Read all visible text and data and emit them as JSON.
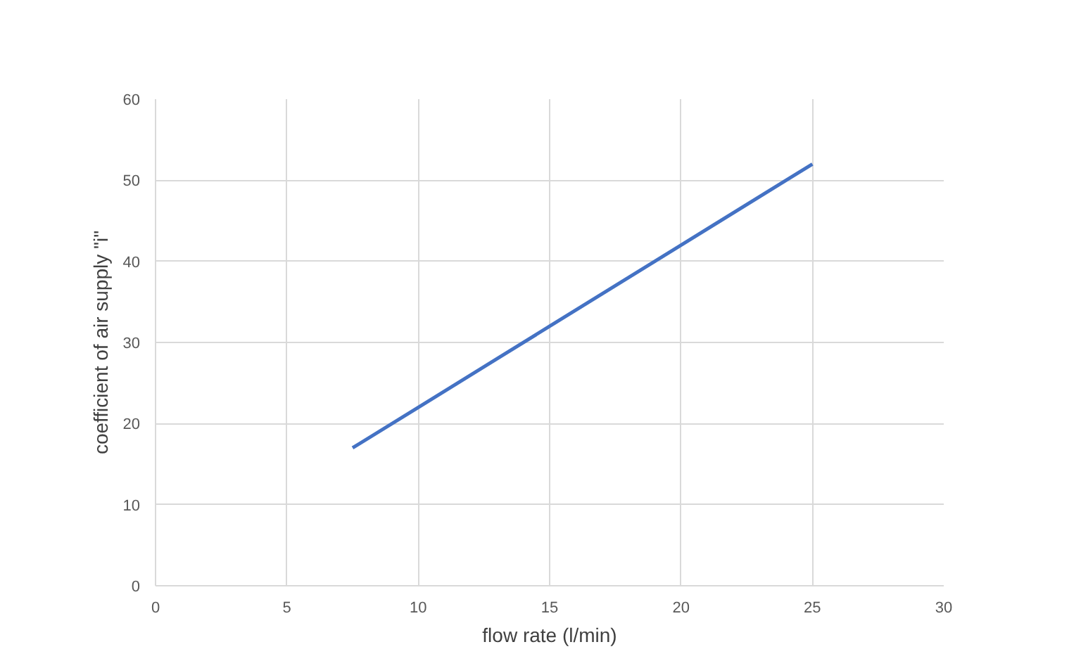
{
  "chart_data": {
    "type": "line",
    "xlabel": "flow rate (l/min)",
    "ylabel": "coefficient of air supply \"i\"",
    "x": [
      7.5,
      10,
      15,
      20,
      25
    ],
    "series": [
      {
        "color": "#4472c4",
        "values": [
          17,
          22,
          32,
          42,
          52
        ]
      }
    ],
    "xlim": [
      0,
      30
    ],
    "xticks": [
      0,
      5,
      10,
      15,
      20,
      25,
      30
    ],
    "ylim": [
      0,
      60
    ],
    "yticks": [
      0,
      10,
      20,
      30,
      40,
      50,
      60
    ],
    "grid": true,
    "marker": "none",
    "line_style": "solid"
  }
}
